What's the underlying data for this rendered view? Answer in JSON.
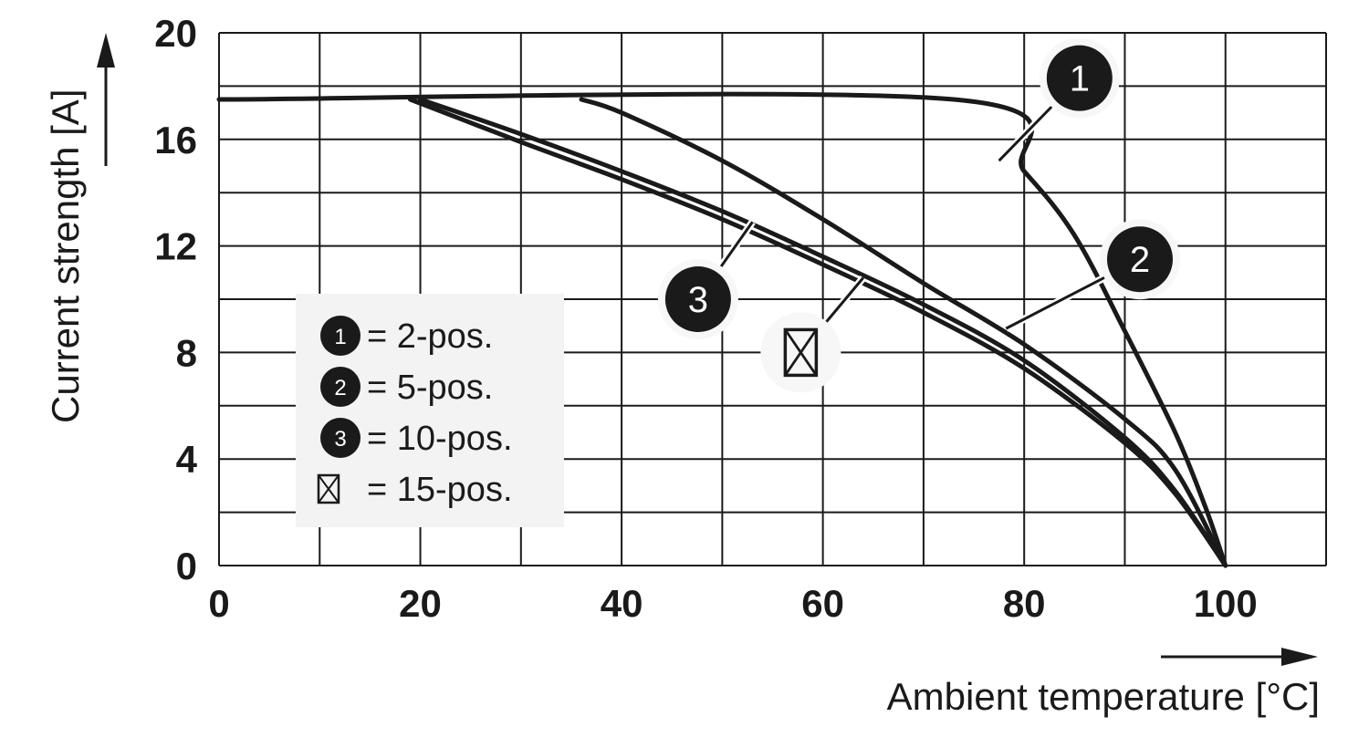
{
  "chart_data": {
    "type": "line",
    "xlabel": "Ambient temperature [°C]",
    "ylabel": "Current strength [A]",
    "xlim": [
      0,
      110
    ],
    "ylim": [
      0,
      20
    ],
    "x_ticks": [
      0,
      20,
      40,
      60,
      80,
      100
    ],
    "y_ticks": [
      0,
      4,
      8,
      12,
      16,
      20
    ],
    "grid": true,
    "grid_x_step": 10,
    "grid_y_step": 2,
    "legend": [
      {
        "marker": "1",
        "text": "= 2-pos."
      },
      {
        "marker": "2",
        "text": "= 5-pos."
      },
      {
        "marker": "3",
        "text": "= 10-pos."
      },
      {
        "marker": "⊠",
        "text": "= 15-pos."
      }
    ],
    "series": [
      {
        "marker": "1",
        "points": [
          [
            0,
            17.5
          ],
          [
            73,
            17.5
          ],
          [
            80,
            14.8
          ],
          [
            85,
            12.4
          ],
          [
            90,
            8.8
          ],
          [
            95,
            5.0
          ],
          [
            98,
            2.2
          ],
          [
            100,
            0
          ]
        ]
      },
      {
        "marker": "2",
        "points": [
          [
            36,
            17.5
          ],
          [
            40,
            17.0
          ],
          [
            50,
            15.2
          ],
          [
            60,
            13.0
          ],
          [
            70,
            10.6
          ],
          [
            80,
            8.3
          ],
          [
            90,
            5.5
          ],
          [
            95,
            3.6
          ],
          [
            100,
            0
          ]
        ]
      },
      {
        "marker": "3",
        "points": [
          [
            20,
            17.5
          ],
          [
            30,
            16.2
          ],
          [
            40,
            14.8
          ],
          [
            50,
            13.3
          ],
          [
            60,
            11.6
          ],
          [
            70,
            9.8
          ],
          [
            80,
            7.7
          ],
          [
            90,
            4.8
          ],
          [
            95,
            2.8
          ],
          [
            100,
            0
          ]
        ]
      },
      {
        "marker": "⊠",
        "points": [
          [
            19,
            17.5
          ],
          [
            30,
            15.9
          ],
          [
            40,
            14.5
          ],
          [
            50,
            13.0
          ],
          [
            60,
            11.3
          ],
          [
            70,
            9.5
          ],
          [
            80,
            7.4
          ],
          [
            90,
            4.6
          ],
          [
            95,
            2.7
          ],
          [
            100,
            0
          ]
        ]
      }
    ],
    "markers": [
      {
        "label": "1",
        "x": 85.5,
        "y": 18.3,
        "line_to": [
          77.5,
          15.2
        ]
      },
      {
        "label": "2",
        "x": 91.5,
        "y": 11.5,
        "line_to": [
          78.2,
          8.9
        ]
      },
      {
        "label": "3",
        "x": 47.6,
        "y": 10.0,
        "line_to": [
          53.0,
          12.9
        ]
      },
      {
        "label": "⊠",
        "x": 57.8,
        "y": 8.0,
        "line_to": [
          64.0,
          10.8
        ]
      }
    ]
  }
}
